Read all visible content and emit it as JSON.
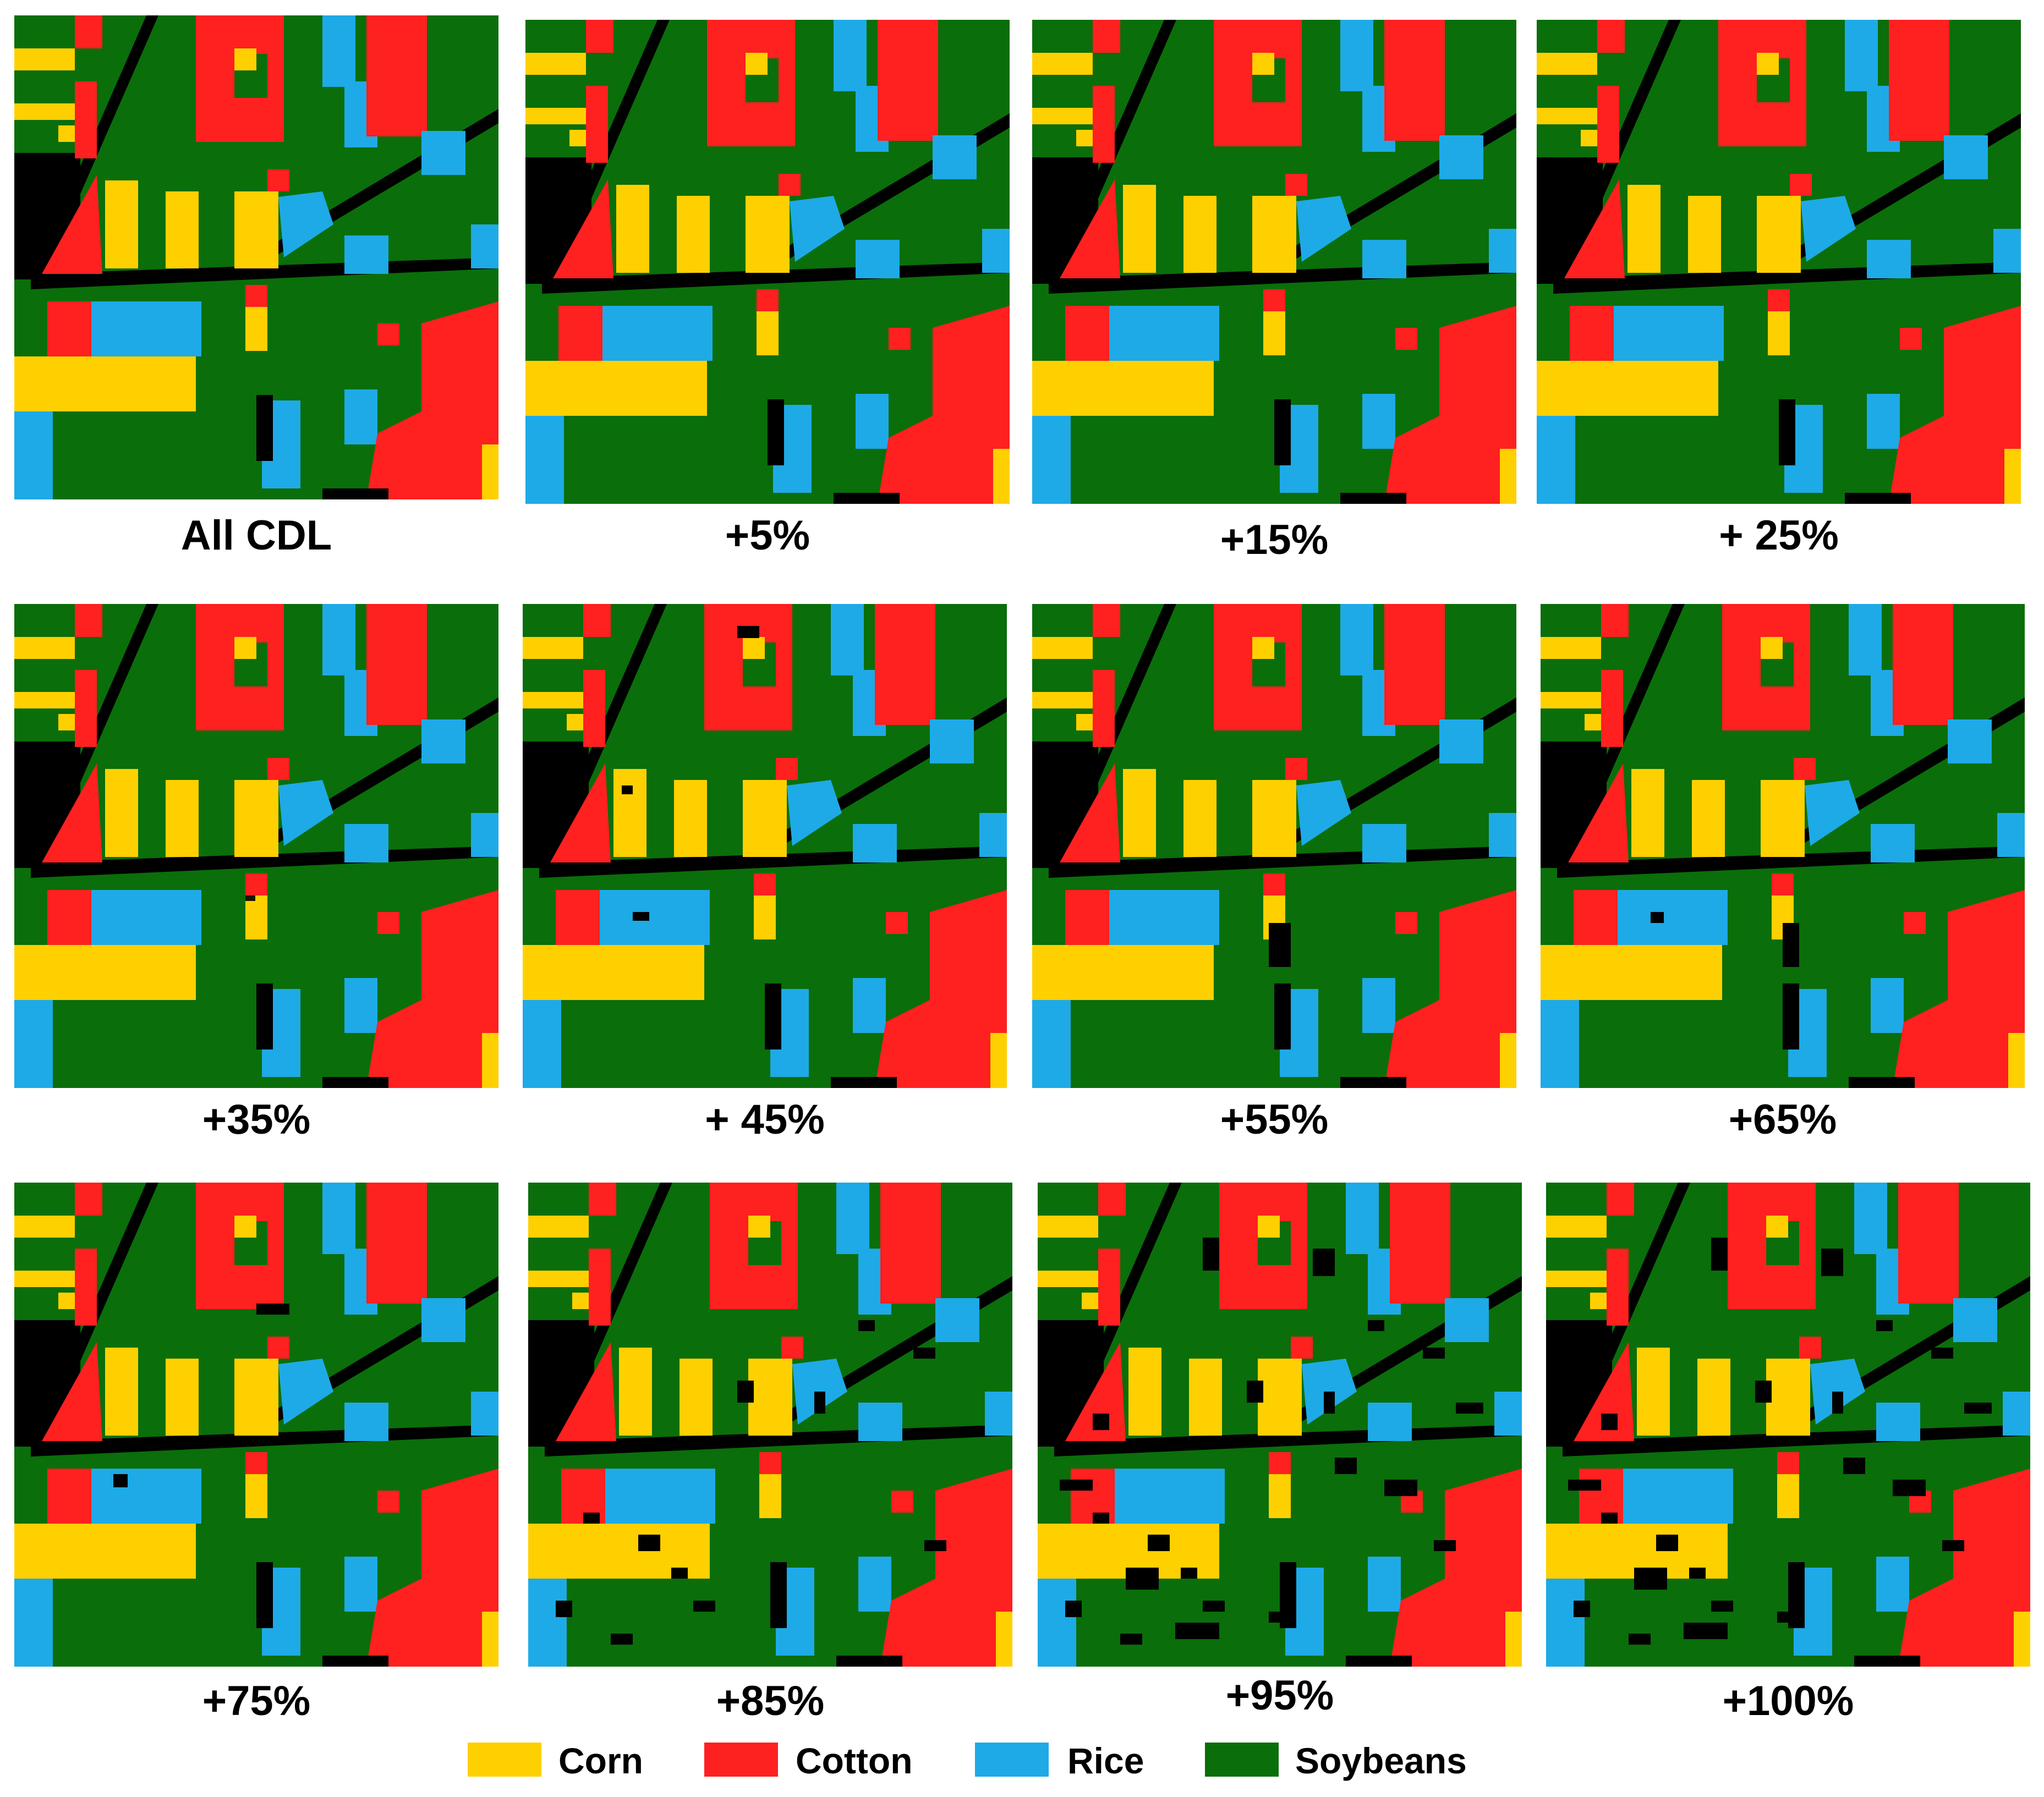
{
  "panels": [
    {
      "label": "All CDL"
    },
    {
      "label": "+5%"
    },
    {
      "label": "+15%"
    },
    {
      "label": "+ 25%"
    },
    {
      "label": "+35%"
    },
    {
      "label": "+ 45%"
    },
    {
      "label": "+55%"
    },
    {
      "label": "+65%"
    },
    {
      "label": "+75%"
    },
    {
      "label": "+85%"
    },
    {
      "label": "+95%"
    },
    {
      "label": "+100%"
    }
  ],
  "legend": [
    {
      "label": "Corn",
      "color": "#FFD000"
    },
    {
      "label": "Cotton",
      "color": "#FF2020"
    },
    {
      "label": "Rice",
      "color": "#1EAAE6"
    },
    {
      "label": "Soybeans",
      "color": "#0A6E0A"
    }
  ],
  "colors": {
    "corn": "#FFD000",
    "cotton": "#FF2020",
    "rice": "#1EAAE6",
    "soybeans": "#0A6E0A",
    "road_background": "#000000"
  }
}
